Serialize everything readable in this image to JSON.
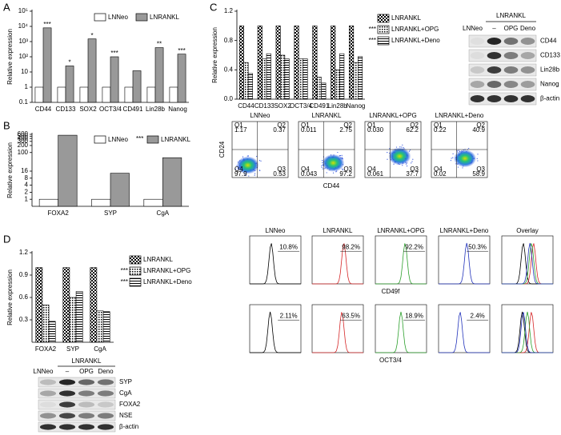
{
  "panel_labels": [
    "A",
    "B",
    "C",
    "D"
  ],
  "chart_data": [
    {
      "type": "bar",
      "scale": "log",
      "ylabel": "Relative expression",
      "categories": [
        "CD44",
        "CD133",
        "SOX2",
        "OCT3/4",
        "CD491",
        "Lin28b",
        "Nanog"
      ],
      "series": [
        {
          "name": "LNNeo",
          "color": "#ffffff",
          "values": [
            1,
            1,
            1,
            1,
            1,
            1,
            1
          ]
        },
        {
          "name": "LNRANKL",
          "color": "#999999",
          "values": [
            8000,
            25,
            1500,
            100,
            12,
            400,
            150
          ]
        }
      ],
      "annotations": [
        "***",
        "*",
        "*",
        "***",
        null,
        "**",
        "***"
      ],
      "legend_notes": [
        null,
        null
      ],
      "ylim": [
        0.1,
        100000
      ],
      "yticks": [
        0.1,
        1,
        10,
        {
          "value": 100,
          "label": "10²"
        },
        {
          "value": 1000,
          "label": "10³"
        },
        {
          "value": 10000,
          "label": "10⁴"
        },
        {
          "value": 100000,
          "label": "10⁵"
        }
      ]
    },
    {
      "type": "bar",
      "scale": "log",
      "ylabel": "Relative expression",
      "categories": [
        "FOXA2",
        "SYP",
        "CgA"
      ],
      "series": [
        {
          "name": "LNNeo",
          "color": "#ffffff",
          "values": [
            1,
            1,
            1
          ]
        },
        {
          "name": "LNRANKL",
          "color": "#999999",
          "values": [
            550,
            13,
            60
          ]
        }
      ],
      "legend_notes": [
        null,
        "***"
      ],
      "ylim": [
        0.5,
        600
      ],
      "yticks": [
        1,
        2,
        4,
        8,
        16,
        100,
        200,
        300,
        400,
        500,
        600
      ]
    },
    {
      "type": "bar",
      "scale": "linear",
      "ylabel": "Relative expression",
      "categories": [
        "CD44",
        "CD133",
        "SOX2",
        "OCT3/4",
        "CD491",
        "Lin28b",
        "Nanog"
      ],
      "series": [
        {
          "name": "LNRANKL",
          "color": "#000000",
          "pattern": "checker",
          "values": [
            1,
            1,
            1,
            1,
            1,
            1,
            1
          ]
        },
        {
          "name": "LNRANKL+OPG",
          "color": "#000000",
          "pattern": "dots",
          "values": [
            0.5,
            0.55,
            0.6,
            0.55,
            0.3,
            0.4,
            0.5
          ]
        },
        {
          "name": "LNRANKL+Deno",
          "color": "#000000",
          "pattern": "hlines",
          "values": [
            0.35,
            0.62,
            0.55,
            0.55,
            0.22,
            0.62,
            0.58
          ]
        }
      ],
      "legend_notes": [
        null,
        "***",
        "***"
      ],
      "ylim": [
        0,
        1.2
      ],
      "yticks": [
        {
          "value": 0,
          "label": "0.0"
        },
        0.4,
        0.8,
        1.2
      ]
    },
    {
      "type": "bar",
      "scale": "linear",
      "ylabel": "Relative expression",
      "categories": [
        "FOXA2",
        "SYP",
        "CgA"
      ],
      "series": [
        {
          "name": "LNRANKL",
          "color": "#000000",
          "pattern": "checker",
          "values": [
            1,
            1,
            1
          ]
        },
        {
          "name": "LNRANKL+OPG",
          "color": "#000000",
          "pattern": "dots",
          "values": [
            0.5,
            0.6,
            0.42
          ]
        },
        {
          "name": "LNRANKL+Deno",
          "color": "#000000",
          "pattern": "hlines",
          "values": [
            0.28,
            0.68,
            0.41
          ]
        }
      ],
      "legend_notes": [
        null,
        "***",
        "***"
      ],
      "ylim": [
        0,
        1.2
      ],
      "yticks": [
        0.3,
        0.6,
        0.9,
        1.2
      ]
    }
  ],
  "blots": [
    {
      "header": "LNRANKL",
      "lanes": [
        "LNNeo",
        "–",
        "OPG",
        "Deno"
      ],
      "rows": [
        "CD44",
        "CD133",
        "Lin28b",
        "Nanog",
        "β-actin"
      ]
    },
    {
      "header": "LNRANKL",
      "lanes": [
        "LNNeo",
        "–",
        "OPG",
        "Deno"
      ],
      "rows": [
        "SYP",
        "CgA",
        "FOXA2",
        "NSE",
        "β-actin"
      ]
    }
  ],
  "flow_scatter": {
    "xlabel": "CD44",
    "ylabel": "CD24",
    "quadrant_names": [
      "Q1",
      "Q2",
      "Q3",
      "Q4"
    ],
    "plots": [
      {
        "title": "LNNeo",
        "values": [
          "1.17",
          "0.37",
          "0.53",
          "97.9"
        ]
      },
      {
        "title": "LNRANKL",
        "values": [
          "0.011",
          "2.75",
          "97.2",
          "0.043"
        ]
      },
      {
        "title": "LNRANKL+OPG",
        "values": [
          "0.030",
          "62.2",
          "37.7",
          "0.061"
        ]
      },
      {
        "title": "LNRANKL+Deno",
        "values": [
          "0.22",
          "40.9",
          "58.9",
          "0.02"
        ]
      }
    ]
  },
  "flow_hist": {
    "titles": [
      "LNNeo",
      "LNRANKL",
      "LNRANKL+OPG",
      "LNRANKL+Deno",
      "Overlay"
    ],
    "colors": [
      "#000000",
      "#d62728",
      "#2ca02c",
      "#2233bb"
    ],
    "rows": [
      {
        "marker": "CD49f",
        "gates": [
          "10.8%",
          "98.2%",
          "92.2%",
          "50.3%"
        ]
      },
      {
        "marker": "OCT3/4",
        "gates": [
          "2.11%",
          "63.5%",
          "18.9%",
          "2.4%"
        ]
      }
    ]
  }
}
